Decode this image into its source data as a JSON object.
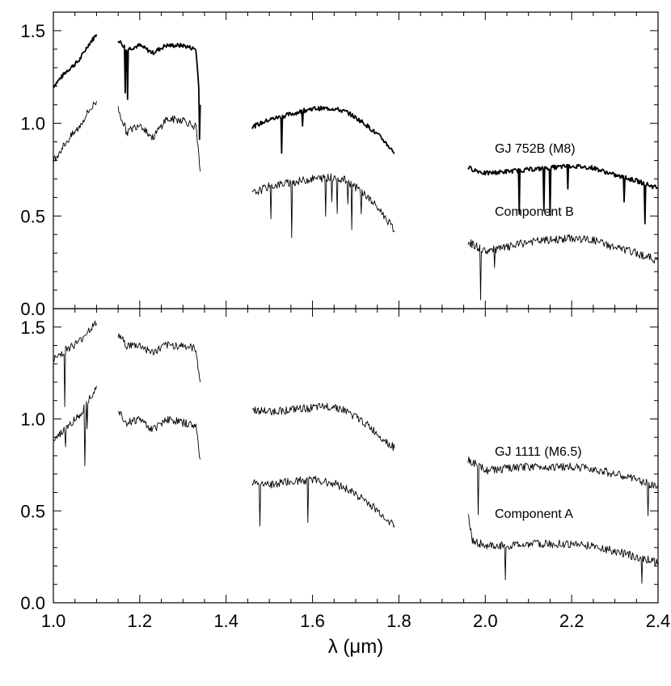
{
  "chart_data": [
    {
      "panel": "top",
      "type": "line",
      "xlim": [
        1.0,
        2.4
      ],
      "ylim": [
        0.0,
        1.6
      ],
      "x_ticks": [
        "1.0",
        "1.2",
        "1.4",
        "1.6",
        "1.8",
        "2.0",
        "2.2",
        "2.4"
      ],
      "y_ticks": [
        "0.0",
        "0.5",
        "1.0",
        "1.5"
      ],
      "series": [
        {
          "name": "GJ 752B (M8)",
          "weight": "thick",
          "segments": [
            [
              [
                1.0,
                1.2
              ],
              [
                1.03,
                1.28
              ],
              [
                1.06,
                1.34
              ],
              [
                1.08,
                1.42
              ],
              [
                1.1,
                1.48
              ]
            ],
            [
              [
                1.15,
                1.45
              ],
              [
                1.17,
                1.4
              ],
              [
                1.2,
                1.42
              ],
              [
                1.23,
                1.38
              ],
              [
                1.26,
                1.42
              ],
              [
                1.3,
                1.42
              ],
              [
                1.33,
                1.4
              ],
              [
                1.34,
                1.1
              ]
            ],
            [
              [
                1.46,
                0.98
              ],
              [
                1.5,
                1.02
              ],
              [
                1.55,
                1.05
              ],
              [
                1.6,
                1.08
              ],
              [
                1.65,
                1.08
              ],
              [
                1.68,
                1.06
              ],
              [
                1.72,
                1.0
              ],
              [
                1.76,
                0.92
              ],
              [
                1.79,
                0.84
              ]
            ],
            [
              [
                1.96,
                0.76
              ],
              [
                2.0,
                0.73
              ],
              [
                2.05,
                0.74
              ],
              [
                2.1,
                0.75
              ],
              [
                2.15,
                0.76
              ],
              [
                2.2,
                0.77
              ],
              [
                2.25,
                0.76
              ],
              [
                2.3,
                0.72
              ],
              [
                2.35,
                0.69
              ],
              [
                2.4,
                0.65
              ]
            ]
          ]
        },
        {
          "name": "Component B",
          "weight": "thin",
          "segments": [
            [
              [
                1.0,
                0.8
              ],
              [
                1.03,
                0.9
              ],
              [
                1.06,
                0.98
              ],
              [
                1.08,
                1.06
              ],
              [
                1.1,
                1.12
              ]
            ],
            [
              [
                1.15,
                1.08
              ],
              [
                1.17,
                0.95
              ],
              [
                1.2,
                1.0
              ],
              [
                1.23,
                0.92
              ],
              [
                1.26,
                1.02
              ],
              [
                1.3,
                1.02
              ],
              [
                1.33,
                0.98
              ],
              [
                1.34,
                0.74
              ]
            ],
            [
              [
                1.46,
                0.62
              ],
              [
                1.5,
                0.66
              ],
              [
                1.55,
                0.68
              ],
              [
                1.6,
                0.7
              ],
              [
                1.65,
                0.71
              ],
              [
                1.68,
                0.69
              ],
              [
                1.72,
                0.62
              ],
              [
                1.76,
                0.52
              ],
              [
                1.79,
                0.42
              ]
            ],
            [
              [
                1.96,
                0.36
              ],
              [
                2.0,
                0.31
              ],
              [
                2.05,
                0.33
              ],
              [
                2.1,
                0.36
              ],
              [
                2.15,
                0.37
              ],
              [
                2.2,
                0.38
              ],
              [
                2.25,
                0.37
              ],
              [
                2.3,
                0.33
              ],
              [
                2.35,
                0.3
              ],
              [
                2.4,
                0.26
              ]
            ]
          ]
        }
      ],
      "annotations": [
        "GJ 752B (M8)",
        "Component B"
      ]
    },
    {
      "panel": "bottom",
      "type": "line",
      "xlim": [
        1.0,
        2.4
      ],
      "ylim": [
        0.0,
        1.6
      ],
      "xlabel": "λ (μm)",
      "x_ticks": [
        "1.0",
        "1.2",
        "1.4",
        "1.6",
        "1.8",
        "2.0",
        "2.2",
        "2.4"
      ],
      "y_ticks": [
        "0.0",
        "0.5",
        "1.0",
        "1.5"
      ],
      "series": [
        {
          "name": "GJ 1111 (M6.5)",
          "weight": "thin",
          "segments": [
            [
              [
                1.0,
                1.32
              ],
              [
                1.03,
                1.38
              ],
              [
                1.06,
                1.42
              ],
              [
                1.08,
                1.48
              ],
              [
                1.1,
                1.52
              ]
            ],
            [
              [
                1.15,
                1.46
              ],
              [
                1.17,
                1.4
              ],
              [
                1.2,
                1.4
              ],
              [
                1.23,
                1.36
              ],
              [
                1.26,
                1.4
              ],
              [
                1.3,
                1.4
              ],
              [
                1.33,
                1.38
              ],
              [
                1.34,
                1.2
              ]
            ],
            [
              [
                1.46,
                1.05
              ],
              [
                1.5,
                1.04
              ],
              [
                1.55,
                1.05
              ],
              [
                1.6,
                1.06
              ],
              [
                1.65,
                1.07
              ],
              [
                1.68,
                1.04
              ],
              [
                1.72,
                0.98
              ],
              [
                1.76,
                0.9
              ],
              [
                1.79,
                0.84
              ]
            ],
            [
              [
                1.96,
                0.78
              ],
              [
                2.0,
                0.72
              ],
              [
                2.05,
                0.73
              ],
              [
                2.1,
                0.74
              ],
              [
                2.15,
                0.74
              ],
              [
                2.2,
                0.74
              ],
              [
                2.25,
                0.73
              ],
              [
                2.3,
                0.7
              ],
              [
                2.35,
                0.67
              ],
              [
                2.4,
                0.63
              ]
            ]
          ]
        },
        {
          "name": "Component A",
          "weight": "thin",
          "segments": [
            [
              [
                1.0,
                0.88
              ],
              [
                1.03,
                0.95
              ],
              [
                1.06,
                1.02
              ],
              [
                1.08,
                1.1
              ],
              [
                1.1,
                1.18
              ]
            ],
            [
              [
                1.15,
                1.05
              ],
              [
                1.17,
                0.98
              ],
              [
                1.2,
                1.0
              ],
              [
                1.23,
                0.94
              ],
              [
                1.26,
                1.0
              ],
              [
                1.3,
                0.98
              ],
              [
                1.33,
                0.96
              ],
              [
                1.34,
                0.78
              ]
            ],
            [
              [
                1.46,
                0.66
              ],
              [
                1.5,
                0.64
              ],
              [
                1.55,
                0.66
              ],
              [
                1.6,
                0.67
              ],
              [
                1.65,
                0.65
              ],
              [
                1.68,
                0.62
              ],
              [
                1.72,
                0.56
              ],
              [
                1.76,
                0.48
              ],
              [
                1.79,
                0.42
              ]
            ],
            [
              [
                1.96,
                0.48
              ],
              [
                1.97,
                0.34
              ],
              [
                2.0,
                0.31
              ],
              [
                2.05,
                0.31
              ],
              [
                2.1,
                0.32
              ],
              [
                2.15,
                0.32
              ],
              [
                2.2,
                0.32
              ],
              [
                2.25,
                0.31
              ],
              [
                2.3,
                0.28
              ],
              [
                2.35,
                0.25
              ],
              [
                2.4,
                0.22
              ]
            ]
          ]
        }
      ],
      "annotations": [
        "GJ 1111 (M6.5)",
        "Component A"
      ]
    }
  ]
}
